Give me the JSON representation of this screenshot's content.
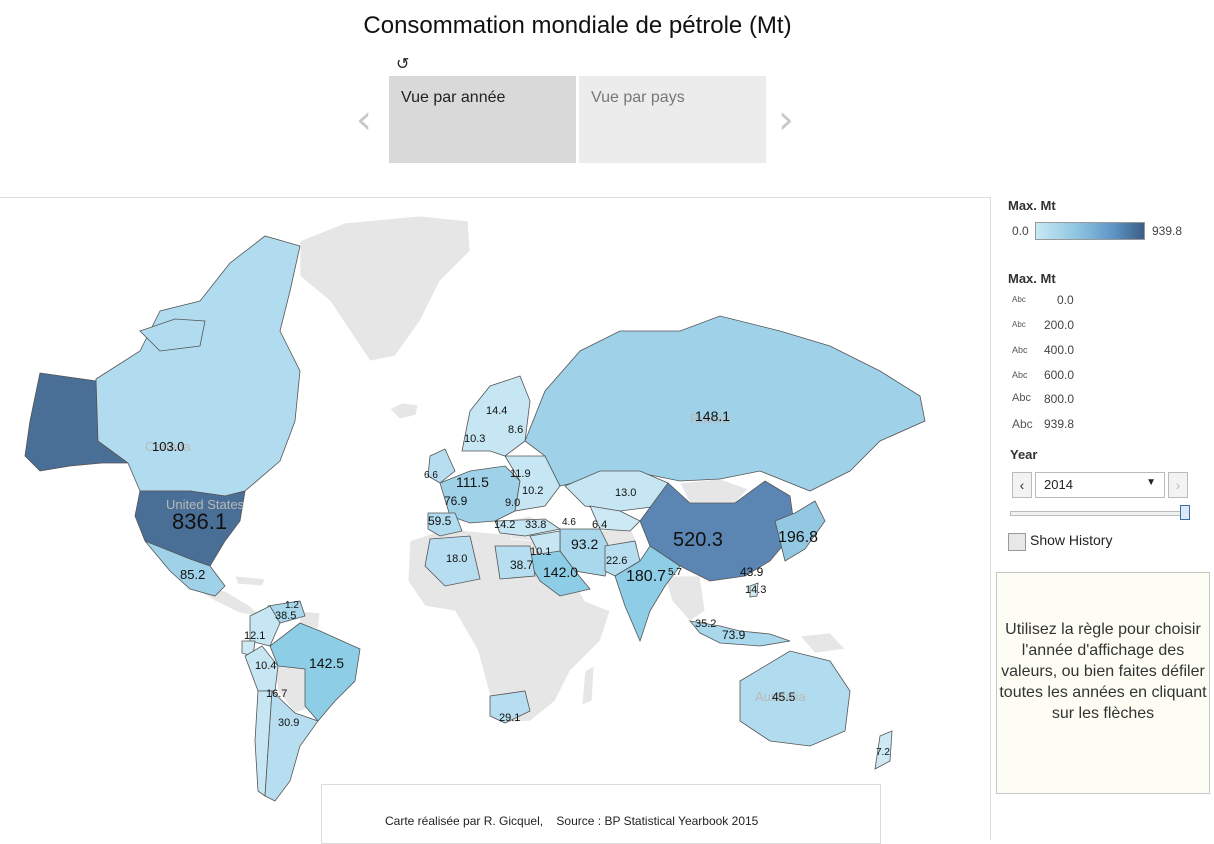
{
  "title": "Consommation mondiale de pétrole (Mt)",
  "revert_icon": "revert-icon",
  "tabs": [
    {
      "label": "Vue par année",
      "active": true
    },
    {
      "label": "Vue par pays",
      "active": false
    }
  ],
  "nav": {
    "prev_icon": "chevron-left-icon",
    "next_icon": "chevron-right-icon"
  },
  "colors": {
    "ocean": "#ffffff",
    "no_data": "#e6e6e6",
    "ramp_low": "#c8e9f5",
    "ramp_high": "#3c5e87"
  },
  "legend": {
    "color_title": "Max. Mt",
    "color_min": "0.0",
    "color_max": "939.8",
    "size_title": "Max. Mt",
    "size_items": [
      "0.0",
      "200.0",
      "400.0",
      "600.0",
      "800.0",
      "939.8"
    ],
    "size_icon": "Abc"
  },
  "year_filter": {
    "label": "Year",
    "selected": "2014",
    "show_history": "Show History",
    "show_history_checked": false,
    "position": 1.0
  },
  "help_text": "Utilisez la règle pour choisir l'année d'affichage des valeurs, ou bien faites défiler toutes les années en cliquant sur les flèches",
  "credit": {
    "author": "Carte réalisée par R. Gicquel,",
    "source": "Source : BP Statistical Yearbook 2015"
  },
  "map": {
    "background_labels": [
      "Canada",
      "United States",
      "Russia",
      "Australia"
    ],
    "values": {
      "usa": "836.1",
      "china": "520.3",
      "japan": "196.8",
      "india": "180.7",
      "russia": "148.1",
      "brazil": "142.5",
      "saudi": "142.0",
      "germany": "111.5",
      "canada": "103.0",
      "iran": "93.2",
      "mexico": "85.2",
      "indonesia": "73.9",
      "france": "76.9",
      "spain": "59.5",
      "australia": "45.5",
      "korea": "43.9",
      "egypt": "38.7",
      "venezuela": "38.5",
      "thailand": "35.2",
      "turkey": "33.8",
      "argentina": "30.9",
      "southafrica": "29.1",
      "pakistan": "22.6",
      "algeria": "18.0",
      "chile": "16.7",
      "sweden": "14.4",
      "taiwan": "14.3",
      "greece": "14.2",
      "kazakhstan": "13.0",
      "colombia": "12.1",
      "belarus": "11.9",
      "norway": "10.3",
      "ukraine": "10.2",
      "israel": "10.1",
      "peru": "10.4",
      "romania": "9.0",
      "finland": "8.6",
      "ireland": "6.6",
      "azerbaijan": "4.6",
      "turkmenistan": "6.4",
      "newzealand": "7.2",
      "bangladesh": "5.7",
      "ecuador": "1.2"
    }
  }
}
